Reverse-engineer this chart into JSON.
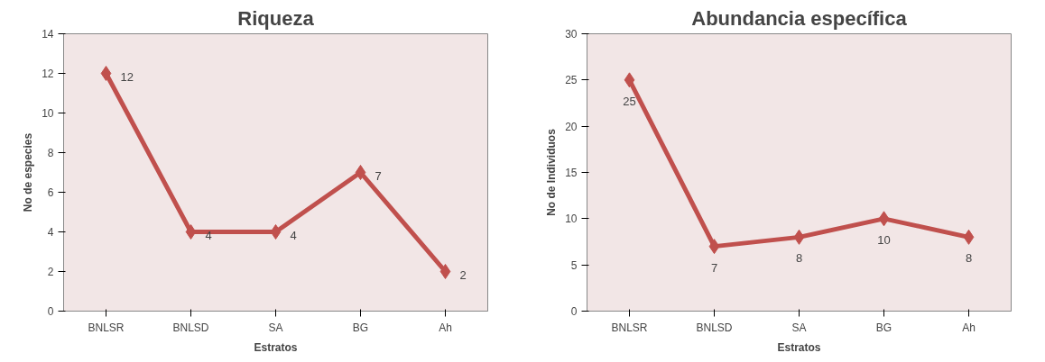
{
  "chart_data": [
    {
      "type": "line",
      "title": "Riqueza",
      "xlabel": "Estratos",
      "ylabel": "No de especies",
      "categories": [
        "BNLSR",
        "BNLSD",
        "SA",
        "BG",
        "Ah"
      ],
      "series": [
        {
          "color": "#c0504d",
          "values": [
            12,
            4,
            4,
            7,
            2
          ]
        }
      ],
      "ylim": [
        0,
        14
      ],
      "yticks": [
        0,
        2,
        4,
        6,
        8,
        10,
        12,
        14
      ],
      "marker": "diamond",
      "data_labels": true,
      "grid": false
    },
    {
      "type": "line",
      "title": "Abundancia específica",
      "xlabel": "Estratos",
      "ylabel": "No de Individuos",
      "categories": [
        "BNLSR",
        "BNLSD",
        "SA",
        "BG",
        "Ah"
      ],
      "series": [
        {
          "color": "#c0504d",
          "values": [
            25,
            7,
            8,
            10,
            8
          ]
        }
      ],
      "ylim": [
        0,
        30
      ],
      "yticks": [
        0,
        5,
        10,
        15,
        20,
        25,
        30
      ],
      "marker": "diamond",
      "data_labels": true,
      "grid": false
    }
  ]
}
